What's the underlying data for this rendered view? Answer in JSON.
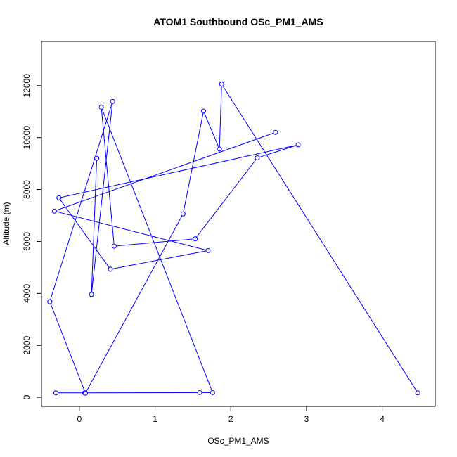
{
  "chart_data": {
    "type": "line",
    "title": "ATOM1 Southbound OSc_PM1_AMS",
    "xlabel": "OSc_PM1_AMS",
    "ylabel": "Altitude (m)",
    "xlim": [
      -0.5,
      4.7
    ],
    "ylim": [
      -350,
      13700
    ],
    "xticks": [
      0,
      1,
      2,
      3,
      4
    ],
    "yticks": [
      0,
      2000,
      4000,
      6000,
      8000,
      10000,
      12000
    ],
    "grid": false,
    "legend": "none",
    "color": "#0000ff",
    "series": [
      {
        "x": [
          4.47,
          1.88,
          1.85,
          1.64,
          1.37,
          0.08,
          0.07,
          -0.31,
          1.59,
          1.76,
          0.29,
          0.46,
          1.53,
          2.35,
          2.89,
          -0.27,
          0.41,
          1.7,
          -0.33,
          2.59
        ],
        "y": [
          170,
          12060,
          9560,
          11020,
          7060,
          160,
          170,
          170,
          180,
          180,
          11170,
          5820,
          6100,
          9220,
          9720,
          7680,
          4930,
          5650,
          7170,
          10200
        ]
      },
      {
        "x": [
          -0.39,
          0.08
        ],
        "y": [
          3680,
          160
        ]
      },
      {
        "x": [
          -0.39,
          0.44,
          0.16,
          0.23,
          0.16
        ],
        "y": [
          3680,
          11390,
          3960,
          9200,
          3960
        ]
      }
    ]
  }
}
